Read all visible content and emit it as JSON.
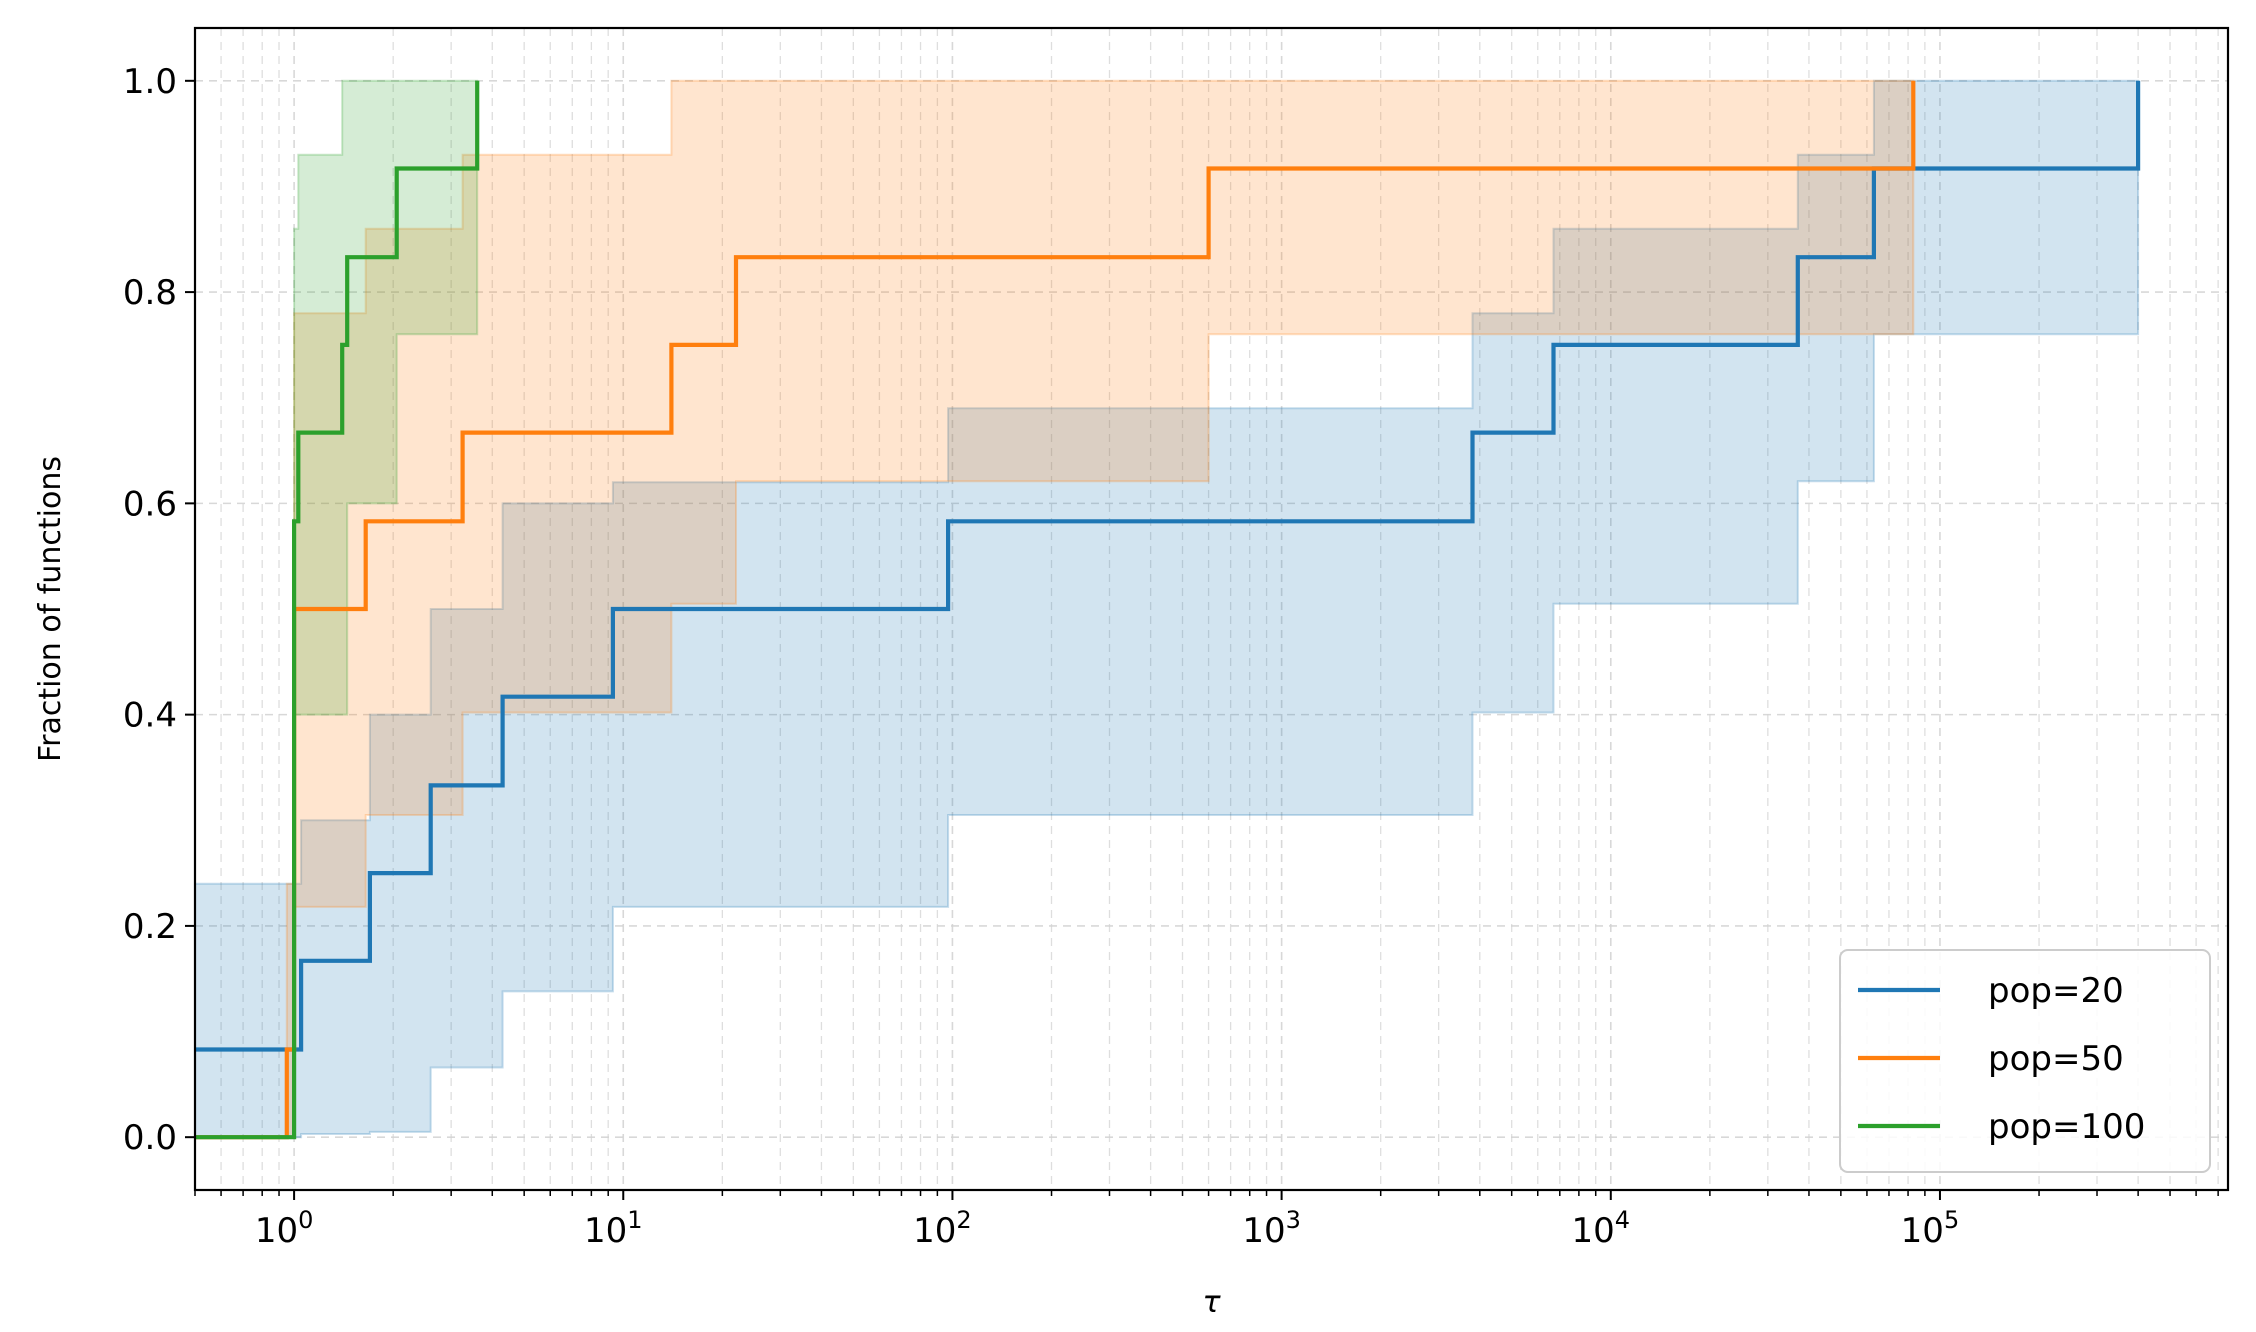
{
  "chart_data": {
    "type": "line",
    "step": true,
    "xscale": "log",
    "xlim": [
      0.5,
      750000
    ],
    "ylim": [
      -0.05,
      1.05
    ],
    "xlabel": "τ",
    "ylabel": "Fraction of functions",
    "grid": true,
    "legend_position": "bottom-right",
    "x_ticks": [
      "10^0",
      "10^1",
      "10^2",
      "10^3",
      "10^4",
      "10^5"
    ],
    "y_ticks": [
      "0.0",
      "0.2",
      "0.4",
      "0.6",
      "0.8",
      "1.0"
    ],
    "series": [
      {
        "name": "pop=20",
        "color": "#1f77b4",
        "x": [
          0.5,
          1.05,
          1.7,
          2.6,
          4.3,
          9.3,
          97,
          3800,
          6700,
          37000,
          63000,
          400000
        ],
        "y": [
          0.083,
          0.167,
          0.25,
          0.333,
          0.417,
          0.5,
          0.583,
          0.667,
          0.75,
          0.833,
          0.917,
          1.0
        ],
        "band_lower": [
          0.0,
          0.003,
          0.005,
          0.066,
          0.138,
          0.218,
          0.305,
          0.402,
          0.505,
          0.621,
          0.76,
          0.76
        ],
        "band_upper": [
          0.24,
          0.3,
          0.4,
          0.5,
          0.6,
          0.62,
          0.69,
          0.78,
          0.86,
          0.93,
          1.0,
          1.0
        ]
      },
      {
        "name": "pop=50",
        "color": "#ff7f0e",
        "x": [
          0.5,
          0.95,
          1.0,
          1.65,
          3.25,
          14,
          22,
          600,
          83000
        ],
        "y": [
          0.0,
          0.083,
          0.5,
          0.583,
          0.667,
          0.75,
          0.833,
          0.917,
          1.0
        ],
        "band_lower": [
          0.0,
          0.0,
          0.218,
          0.305,
          0.402,
          0.505,
          0.621,
          0.76,
          0.76
        ],
        "band_upper": [
          0.0,
          0.24,
          0.78,
          0.86,
          0.93,
          1.0,
          1.0,
          1.0,
          1.0
        ]
      },
      {
        "name": "pop=100",
        "color": "#2ca02c",
        "x": [
          0.5,
          1.0,
          1.03,
          1.4,
          1.45,
          2.05,
          3.6
        ],
        "y": [
          0.0,
          0.583,
          0.667,
          0.75,
          0.833,
          0.917,
          1.0
        ],
        "band_lower": [
          0.0,
          0.4,
          0.4,
          0.4,
          0.6,
          0.76,
          0.76
        ],
        "band_upper": [
          0.0,
          0.86,
          0.93,
          1.0,
          1.0,
          1.0,
          1.0
        ]
      }
    ]
  }
}
